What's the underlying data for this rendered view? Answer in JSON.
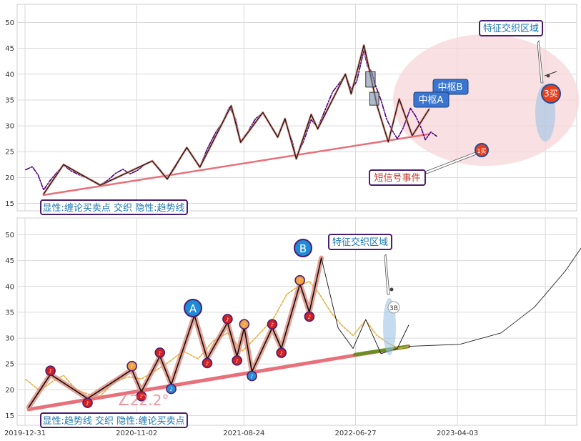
{
  "chart_data": [
    {
      "type": "line",
      "panel": "top",
      "ylim": [
        13.5,
        53
      ],
      "yticks": [
        15,
        20,
        25,
        30,
        35,
        40,
        45,
        50
      ],
      "grid": true,
      "legend_box": "显性:缠论买卖点 交织 隐性:趋势线",
      "annotations": {
        "feature_zone": "特征交织区域",
        "zhongshu_a": "中枢A",
        "zhongshu_b": "中枢B",
        "short_signal": "短信号事件",
        "third_buy": "3买"
      },
      "price_series": [
        {
          "x": "2020-01-02",
          "y": 21.5
        },
        {
          "x": "2020-01-20",
          "y": 22.1
        },
        {
          "x": "2020-02-05",
          "y": 20.5
        },
        {
          "x": "2020-02-20",
          "y": 17.6
        },
        {
          "x": "2020-03-10",
          "y": 19.5
        },
        {
          "x": "2020-03-28",
          "y": 21.0
        },
        {
          "x": "2020-04-15",
          "y": 22.4
        },
        {
          "x": "2020-05-05",
          "y": 21.3
        },
        {
          "x": "2020-05-25",
          "y": 20.6
        },
        {
          "x": "2020-06-15",
          "y": 20.0
        },
        {
          "x": "2020-07-05",
          "y": 19.4
        },
        {
          "x": "2020-07-25",
          "y": 18.6
        },
        {
          "x": "2020-08-15",
          "y": 19.5
        },
        {
          "x": "2020-09-05",
          "y": 20.8
        },
        {
          "x": "2020-09-25",
          "y": 21.6
        },
        {
          "x": "2020-10-15",
          "y": 20.7
        },
        {
          "x": "2020-11-05",
          "y": 21.4
        },
        {
          "x": "2020-11-25",
          "y": 22.6
        },
        {
          "x": "2020-12-15",
          "y": 23.2
        },
        {
          "x": "2021-01-05",
          "y": 21.6
        },
        {
          "x": "2021-01-25",
          "y": 19.7
        },
        {
          "x": "2021-02-15",
          "y": 21.8
        },
        {
          "x": "2021-03-05",
          "y": 24.0
        },
        {
          "x": "2021-03-20",
          "y": 25.7
        },
        {
          "x": "2021-04-10",
          "y": 23.6
        },
        {
          "x": "2021-04-25",
          "y": 22.1
        },
        {
          "x": "2021-05-15",
          "y": 25.5
        },
        {
          "x": "2021-06-05",
          "y": 28.4
        },
        {
          "x": "2021-06-25",
          "y": 30.6
        },
        {
          "x": "2021-07-15",
          "y": 33.6
        },
        {
          "x": "2021-08-01",
          "y": 31.4
        },
        {
          "x": "2021-08-15",
          "y": 27.0
        },
        {
          "x": "2021-09-05",
          "y": 29.0
        },
        {
          "x": "2021-09-25",
          "y": 31.4
        },
        {
          "x": "2021-10-15",
          "y": 32.5
        },
        {
          "x": "2021-11-05",
          "y": 30.2
        },
        {
          "x": "2021-11-25",
          "y": 28.0
        },
        {
          "x": "2021-12-15",
          "y": 31.0
        },
        {
          "x": "2022-01-05",
          "y": 26.8
        },
        {
          "x": "2022-01-15",
          "y": 23.8
        },
        {
          "x": "2022-02-05",
          "y": 27.2
        },
        {
          "x": "2022-02-25",
          "y": 31.2
        },
        {
          "x": "2022-03-15",
          "y": 29.6
        },
        {
          "x": "2022-04-05",
          "y": 33.2
        },
        {
          "x": "2022-04-25",
          "y": 36.6
        },
        {
          "x": "2022-05-15",
          "y": 38.4
        },
        {
          "x": "2022-05-30",
          "y": 40.0
        },
        {
          "x": "2022-06-15",
          "y": 37.0
        },
        {
          "x": "2022-06-30",
          "y": 38.6
        },
        {
          "x": "2022-07-20",
          "y": 44.6
        },
        {
          "x": "2022-07-30",
          "y": 41.5
        },
        {
          "x": "2022-08-10",
          "y": 40.5
        },
        {
          "x": "2022-08-20",
          "y": 38.0
        },
        {
          "x": "2022-09-05",
          "y": 35.0
        },
        {
          "x": "2022-09-20",
          "y": 31.4
        },
        {
          "x": "2022-10-05",
          "y": 29.2
        },
        {
          "x": "2022-10-20",
          "y": 27.5
        },
        {
          "x": "2022-11-05",
          "y": 29.6
        },
        {
          "x": "2022-11-25",
          "y": 33.4
        },
        {
          "x": "2022-12-10",
          "y": 31.8
        },
        {
          "x": "2022-12-25",
          "y": 29.5
        },
        {
          "x": "2023-01-05",
          "y": 27.3
        },
        {
          "x": "2023-01-20",
          "y": 28.8
        },
        {
          "x": "2023-02-05",
          "y": 28.0
        }
      ],
      "bi_pen": [
        {
          "x": "2020-02-20",
          "y": 16.8
        },
        {
          "x": "2020-04-15",
          "y": 22.5
        },
        {
          "x": "2020-07-25",
          "y": 18.5
        },
        {
          "x": "2020-12-15",
          "y": 23.2
        },
        {
          "x": "2021-01-25",
          "y": 19.7
        },
        {
          "x": "2021-03-20",
          "y": 25.8
        },
        {
          "x": "2021-04-25",
          "y": 22.0
        },
        {
          "x": "2021-07-20",
          "y": 33.9
        },
        {
          "x": "2021-08-15",
          "y": 26.8
        },
        {
          "x": "2021-10-15",
          "y": 32.6
        },
        {
          "x": "2021-11-25",
          "y": 27.8
        },
        {
          "x": "2021-12-15",
          "y": 31.4
        },
        {
          "x": "2022-01-15",
          "y": 23.6
        },
        {
          "x": "2022-02-25",
          "y": 32.2
        },
        {
          "x": "2022-03-15",
          "y": 29.4
        },
        {
          "x": "2022-05-30",
          "y": 40.0
        },
        {
          "x": "2022-06-15",
          "y": 36.2
        },
        {
          "x": "2022-07-20",
          "y": 45.6
        },
        {
          "x": "2022-08-10",
          "y": 38.9
        },
        {
          "x": "2022-08-25",
          "y": 34.0
        },
        {
          "x": "2022-09-25",
          "y": 26.9
        },
        {
          "x": "2022-10-25",
          "y": 35.2
        },
        {
          "x": "2022-11-30",
          "y": 28.1
        },
        {
          "x": "2023-01-15",
          "y": 33.2
        }
      ],
      "trendline": [
        {
          "x": "2020-02-20",
          "y": 16.6
        },
        {
          "x": "2023-01-15",
          "y": 28.4
        }
      ],
      "signal_points": [
        {
          "label": "1买",
          "x": "2022-09-25",
          "y": 26.5
        },
        {
          "label": "3买",
          "x": "2023-01-25",
          "y": 36.3
        }
      ]
    },
    {
      "type": "line",
      "panel": "bottom",
      "ylim": [
        13.5,
        53
      ],
      "yticks": [
        15,
        20,
        25,
        30,
        35,
        40,
        45,
        50
      ],
      "grid": true,
      "legend_box": "显性:趋势线 交织 隐性:缠论买卖点",
      "x_tick_labels": [
        "2019-12-31",
        "2020-11-02",
        "2021-08-24",
        "2022-06-27",
        "2023-04-03"
      ],
      "annotations": {
        "feature_zone": "特征交织区域",
        "angle_label": "∠22.2°",
        "wave_a": "A",
        "wave_b": "B",
        "third_buy": "3B",
        "marker_glyph": "♪"
      },
      "price_series": [
        {
          "x": "2020-01-02",
          "y": 22.0
        },
        {
          "x": "2020-02-10",
          "y": 19.8
        },
        {
          "x": "2020-03-15",
          "y": 21.6
        },
        {
          "x": "2020-04-15",
          "y": 22.8
        },
        {
          "x": "2020-05-20",
          "y": 20.0
        },
        {
          "x": "2020-06-20",
          "y": 19.2
        },
        {
          "x": "2020-07-25",
          "y": 18.8
        },
        {
          "x": "2020-09-01",
          "y": 21.5
        },
        {
          "x": "2020-10-10",
          "y": 22.5
        },
        {
          "x": "2020-11-15",
          "y": 22.1
        },
        {
          "x": "2020-12-20",
          "y": 23.5
        },
        {
          "x": "2021-02-01",
          "y": 25.5
        },
        {
          "x": "2021-03-10",
          "y": 27.5
        },
        {
          "x": "2021-04-20",
          "y": 26.0
        },
        {
          "x": "2021-06-01",
          "y": 29.5
        },
        {
          "x": "2021-07-10",
          "y": 31.0
        },
        {
          "x": "2021-08-20",
          "y": 27.5
        },
        {
          "x": "2021-10-01",
          "y": 30.5
        },
        {
          "x": "2021-11-15",
          "y": 34.0
        },
        {
          "x": "2021-12-20",
          "y": 38.5
        },
        {
          "x": "2022-01-20",
          "y": 40.0
        },
        {
          "x": "2022-02-20",
          "y": 41.0
        },
        {
          "x": "2022-03-20",
          "y": 38.5
        },
        {
          "x": "2022-04-20",
          "y": 35.0
        },
        {
          "x": "2022-05-20",
          "y": 32.5
        },
        {
          "x": "2022-06-20",
          "y": 30.5
        },
        {
          "x": "2022-07-25",
          "y": 33.5
        },
        {
          "x": "2022-08-25",
          "y": 30.5
        },
        {
          "x": "2022-09-25",
          "y": 29.0
        },
        {
          "x": "2022-10-25",
          "y": 28.0
        },
        {
          "x": "2022-11-25",
          "y": 28.5
        }
      ],
      "bi_pen": [
        {
          "x": "2020-01-10",
          "y": 16.6
        },
        {
          "x": "2020-03-10",
          "y": 23.0
        },
        {
          "x": "2020-06-20",
          "y": 18.3
        },
        {
          "x": "2020-10-20",
          "y": 23.9
        },
        {
          "x": "2020-11-15",
          "y": 19.6
        },
        {
          "x": "2021-01-05",
          "y": 26.5
        },
        {
          "x": "2021-02-05",
          "y": 21.0
        },
        {
          "x": "2021-04-10",
          "y": 34.4
        },
        {
          "x": "2021-05-15",
          "y": 26.0
        },
        {
          "x": "2021-07-10",
          "y": 33.0
        },
        {
          "x": "2021-08-05",
          "y": 26.5
        },
        {
          "x": "2021-08-25",
          "y": 32.0
        },
        {
          "x": "2021-09-15",
          "y": 23.5
        },
        {
          "x": "2021-11-10",
          "y": 32.0
        },
        {
          "x": "2021-12-05",
          "y": 28.0
        },
        {
          "x": "2022-01-25",
          "y": 40.5
        },
        {
          "x": "2022-02-20",
          "y": 35.0
        },
        {
          "x": "2022-03-25",
          "y": 45.5
        }
      ],
      "trendline": [
        {
          "x": "2020-01-10",
          "y": 16.2
        },
        {
          "x": "2022-11-20",
          "y": 28.4
        }
      ],
      "extension_line": [
        {
          "x": "2022-06-25",
          "y": 26.8
        },
        {
          "x": "2022-11-20",
          "y": 28.4
        }
      ],
      "projection_curve": [
        {
          "x": "2022-11-20",
          "y": 28.4
        },
        {
          "x": "2023-04-10",
          "y": 28.8
        },
        {
          "x": "2023-08-01",
          "y": 31.0
        },
        {
          "x": "2023-11-01",
          "y": 36.0
        },
        {
          "x": "2024-01-25",
          "y": 43.0
        },
        {
          "x": "2024-04-10",
          "y": 50.8
        }
      ],
      "signal_points": [
        {
          "label": "A",
          "x": "2021-04-05",
          "y": 36.0
        },
        {
          "label": "B",
          "x": "2022-03-25",
          "y": 47.4
        },
        {
          "label": "3B",
          "x": "2022-11-10",
          "y": 35.6
        }
      ]
    }
  ],
  "colors": {
    "price_top": "#4b0082",
    "price_bottom": "#e8b040",
    "bi_pen": "#111111",
    "bi_glow": "#e08a7a",
    "trendline": "#e8707a",
    "extension": "#6b8e23",
    "ellipse_fill": "#f7d6da",
    "box_border": "#4b1d6e",
    "box_text": "#1f78b4",
    "callout_fill": "#3a75d0",
    "marker_red": "#d42020",
    "marker_orange": "#f0a040",
    "marker_blue": "#2a8cd8"
  }
}
